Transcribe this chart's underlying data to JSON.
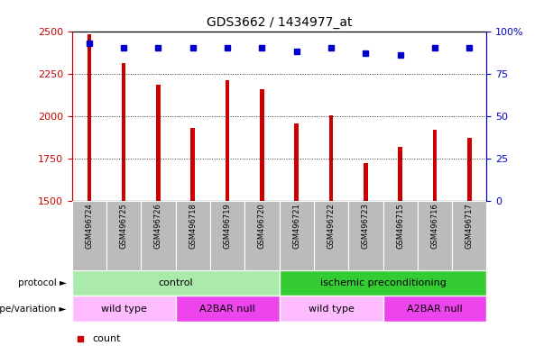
{
  "title": "GDS3662 / 1434977_at",
  "samples": [
    "GSM496724",
    "GSM496725",
    "GSM496726",
    "GSM496718",
    "GSM496719",
    "GSM496720",
    "GSM496721",
    "GSM496722",
    "GSM496723",
    "GSM496715",
    "GSM496716",
    "GSM496717"
  ],
  "counts": [
    2480,
    2310,
    2185,
    1930,
    2210,
    2155,
    1955,
    2005,
    1720,
    1820,
    1920,
    1870
  ],
  "percentile_ranks": [
    93,
    90,
    90,
    90,
    90,
    90,
    88,
    90,
    87,
    86,
    90,
    90
  ],
  "ylim_left": [
    1500,
    2500
  ],
  "ylim_right": [
    0,
    100
  ],
  "yticks_left": [
    1500,
    1750,
    2000,
    2250,
    2500
  ],
  "yticks_right": [
    0,
    25,
    50,
    75,
    100
  ],
  "bar_color": "#cc0000",
  "dot_color": "#0000cc",
  "bar_width": 0.12,
  "protocol_labels": [
    {
      "text": "control",
      "span": [
        0,
        5
      ],
      "color": "#aaeaaa"
    },
    {
      "text": "ischemic preconditioning",
      "span": [
        6,
        11
      ],
      "color": "#33cc33"
    }
  ],
  "genotype_labels": [
    {
      "text": "wild type",
      "span": [
        0,
        2
      ],
      "color": "#ffbbff"
    },
    {
      "text": "A2BAR null",
      "span": [
        3,
        5
      ],
      "color": "#ee44ee"
    },
    {
      "text": "wild type",
      "span": [
        6,
        8
      ],
      "color": "#ffbbff"
    },
    {
      "text": "A2BAR null",
      "span": [
        9,
        11
      ],
      "color": "#ee44ee"
    }
  ],
  "sample_bg_color": "#bbbbbb",
  "grid_color": "#333333",
  "left_axis_color": "#cc0000",
  "right_axis_color": "#0000cc",
  "legend_count_color": "#cc0000",
  "legend_percentile_color": "#0000cc",
  "bg_color": "#ffffff"
}
